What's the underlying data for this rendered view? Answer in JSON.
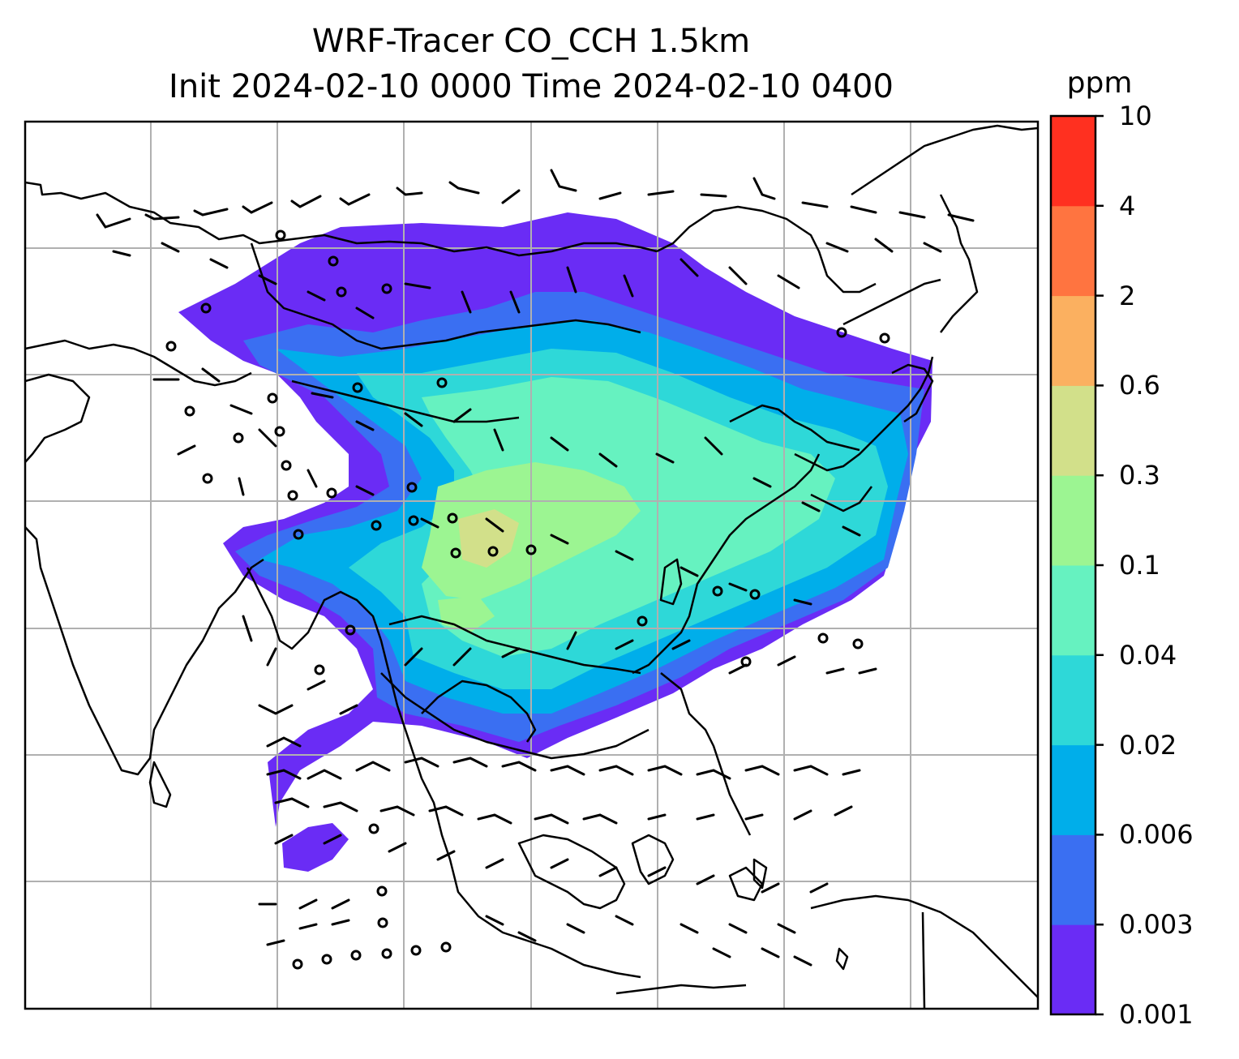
{
  "title": {
    "line1": "WRF-Tracer CO_CCH 1.5km",
    "line2": "Init 2024-02-10 0000 Time 2024-02-10 0400"
  },
  "colorbar": {
    "units": "ppm",
    "levels": [
      "0.001",
      "0.003",
      "0.006",
      "0.02",
      "0.04",
      "0.1",
      "0.3",
      "0.6",
      "2",
      "4",
      "10"
    ],
    "colors": [
      "#6a2cf5",
      "#3a6ff2",
      "#00aeea",
      "#2ed8d8",
      "#66f2c0",
      "#9cf592",
      "#d2e08a",
      "#fbb060",
      "#ff7440",
      "#ff3020"
    ]
  },
  "map": {
    "background": "#ffffff",
    "gridlines": true,
    "coastline_color": "#000000",
    "contour_fill": "filled tracer concentration over East and Southeast Asia",
    "wind_barbs": true
  }
}
